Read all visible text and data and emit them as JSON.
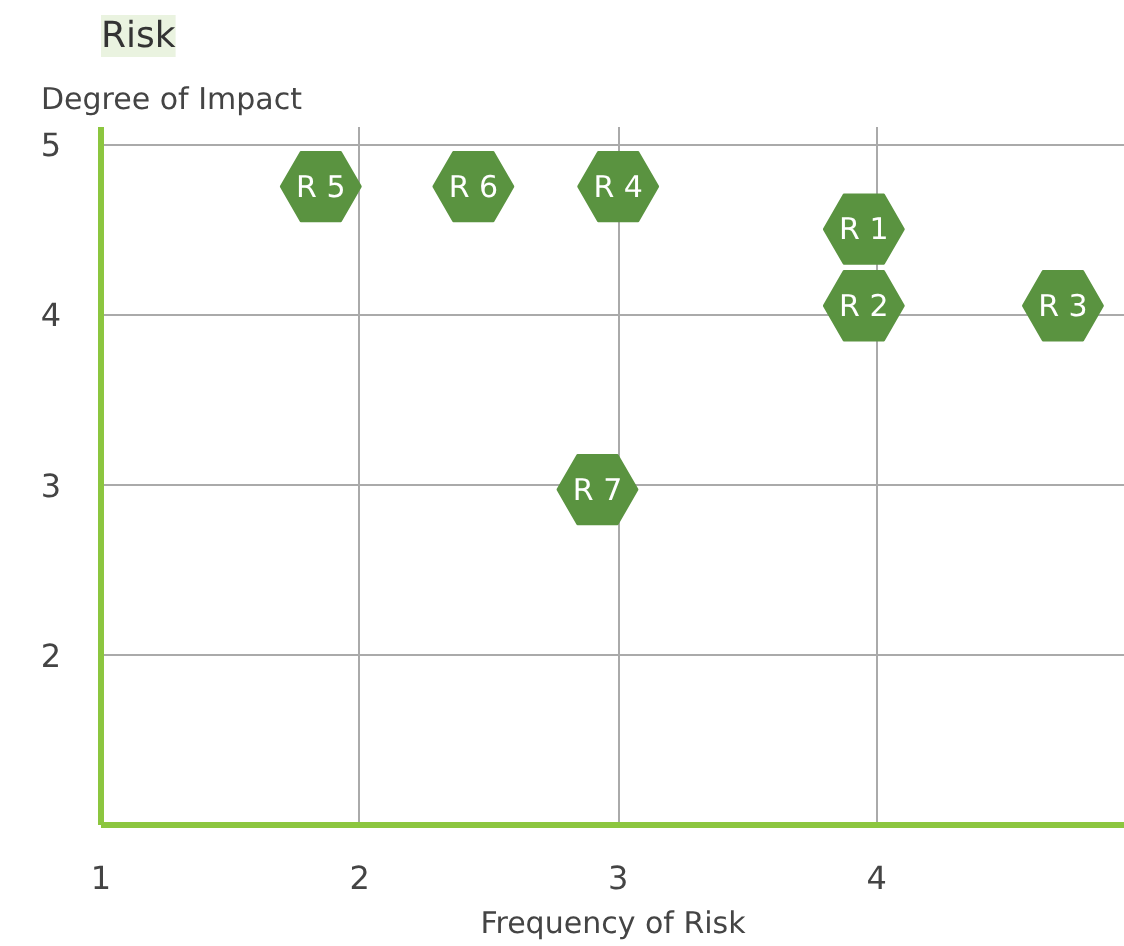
{
  "chart_data": {
    "type": "scatter",
    "title": "Risk",
    "ylabel": "Degree of Impact",
    "xlabel": "Frequency of Risk",
    "x": [
      3.95,
      3.95,
      4.72,
      3.0,
      1.85,
      2.44,
      2.92
    ],
    "series": [
      {
        "color": "#5a9340",
        "values": [
          4.5,
          4.05,
          4.05,
          4.75,
          4.75,
          4.75,
          2.97
        ]
      }
    ],
    "annotations": [
      {
        "text": "R 1",
        "x": 3.95,
        "y": 4.5
      },
      {
        "text": "R 2",
        "x": 3.95,
        "y": 4.05
      },
      {
        "text": "R 3",
        "x": 4.72,
        "y": 4.05
      },
      {
        "text": "R 4",
        "x": 3.0,
        "y": 4.75
      },
      {
        "text": "R 5",
        "x": 1.85,
        "y": 4.75
      },
      {
        "text": "R 6",
        "x": 2.44,
        "y": 4.75
      },
      {
        "text": "R 7",
        "x": 2.92,
        "y": 2.97
      }
    ],
    "xlim": [
      1,
      4.96
    ],
    "ylim": [
      1,
      5.1
    ],
    "xticks": [
      1,
      2,
      3,
      4
    ],
    "yticks": [
      2,
      3,
      4,
      5
    ],
    "grid": true
  }
}
